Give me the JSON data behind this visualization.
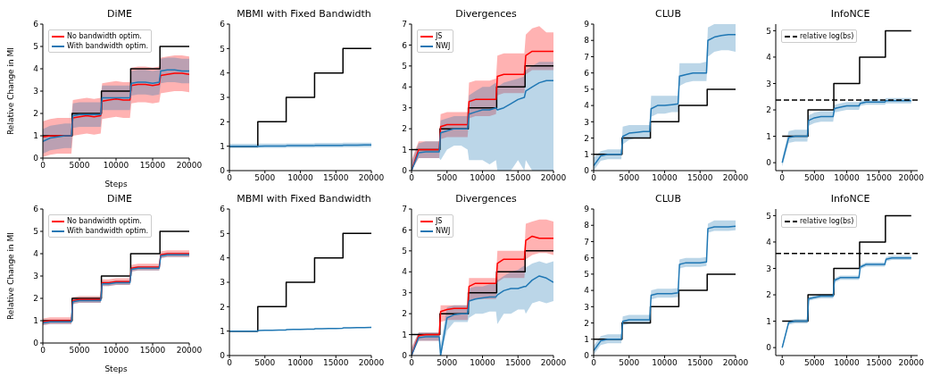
{
  "chart_data": [
    {
      "type": "line",
      "title": "DiME",
      "xlabel": "Steps",
      "ylabel": "Relative Change in MI",
      "xlim": [
        0,
        20000
      ],
      "xticks": [
        0,
        5000,
        10000,
        15000,
        20000
      ],
      "ylim": [
        0,
        6
      ],
      "yticks": [
        0,
        1,
        2,
        3,
        4,
        5,
        6
      ],
      "legend": "top left",
      "x": [
        0,
        1000,
        2000,
        3000,
        3900,
        4100,
        5000,
        6000,
        7000,
        7900,
        8100,
        9000,
        10000,
        11000,
        11900,
        12100,
        13000,
        14000,
        15000,
        15900,
        16100,
        17000,
        18000,
        19000,
        20000
      ],
      "series": [
        {
          "type": "step",
          "color": "#000000",
          "x": [
            0,
            4000,
            8000,
            12000,
            16000,
            20000
          ],
          "values": [
            1,
            2,
            3,
            4,
            5,
            5
          ]
        },
        {
          "name": "No bandwidth optim.",
          "color": "#ff0000",
          "values": [
            0.95,
            1.0,
            1.0,
            1.0,
            1.0,
            1.8,
            1.85,
            1.9,
            1.85,
            1.9,
            2.55,
            2.6,
            2.65,
            2.6,
            2.6,
            3.25,
            3.3,
            3.3,
            3.25,
            3.3,
            3.7,
            3.75,
            3.8,
            3.8,
            3.75
          ],
          "lower": [
            0.05,
            0.15,
            0.2,
            0.2,
            0.2,
            1.0,
            1.05,
            1.1,
            1.05,
            1.1,
            1.75,
            1.8,
            1.85,
            1.8,
            1.8,
            2.45,
            2.5,
            2.5,
            2.45,
            2.5,
            2.9,
            2.95,
            3.0,
            3.0,
            2.95
          ],
          "upper": [
            1.65,
            1.75,
            1.8,
            1.8,
            1.8,
            2.6,
            2.65,
            2.7,
            2.65,
            2.7,
            3.35,
            3.4,
            3.45,
            3.4,
            3.4,
            4.05,
            4.1,
            4.1,
            4.05,
            4.1,
            4.5,
            4.55,
            4.6,
            4.6,
            4.55
          ]
        },
        {
          "name": "With bandwidth optim.",
          "color": "#1f77b4",
          "values": [
            0.75,
            0.9,
            0.95,
            1.0,
            1.0,
            1.9,
            1.95,
            1.95,
            1.95,
            1.95,
            2.7,
            2.7,
            2.7,
            2.7,
            2.7,
            3.35,
            3.4,
            3.4,
            3.35,
            3.4,
            3.9,
            3.95,
            3.95,
            3.9,
            3.9
          ],
          "lower": [
            0.2,
            0.35,
            0.4,
            0.45,
            0.45,
            1.35,
            1.4,
            1.4,
            1.4,
            1.4,
            2.15,
            2.15,
            2.15,
            2.15,
            2.15,
            2.8,
            2.85,
            2.85,
            2.8,
            2.85,
            3.35,
            3.4,
            3.4,
            3.35,
            3.35
          ],
          "upper": [
            1.3,
            1.45,
            1.5,
            1.55,
            1.55,
            2.45,
            2.5,
            2.5,
            2.5,
            2.5,
            3.25,
            3.25,
            3.25,
            3.25,
            3.25,
            3.9,
            3.95,
            3.95,
            3.9,
            3.95,
            4.45,
            4.5,
            4.5,
            4.45,
            4.45
          ]
        }
      ]
    },
    {
      "type": "line",
      "title": "MBMI with Fixed Bandwidth",
      "xlim": [
        0,
        20000
      ],
      "xticks": [
        0,
        5000,
        10000,
        15000,
        20000
      ],
      "ylim": [
        0,
        6
      ],
      "yticks": [
        0,
        1,
        2,
        3,
        4,
        5,
        6
      ],
      "x": [
        0,
        1000,
        2000,
        3000,
        3900,
        4100,
        5000,
        6000,
        7000,
        7900,
        8100,
        9000,
        10000,
        11000,
        11900,
        12100,
        13000,
        14000,
        15000,
        15900,
        16100,
        17000,
        18000,
        19000,
        20000
      ],
      "series": [
        {
          "type": "step",
          "color": "#000000",
          "x": [
            0,
            4000,
            8000,
            12000,
            16000,
            20000
          ],
          "values": [
            1,
            2,
            3,
            4,
            5,
            5
          ]
        },
        {
          "color": "#1f77b4",
          "values": [
            1.0,
            1.0,
            1.0,
            1.0,
            1.0,
            1.0,
            1.01,
            1.01,
            1.01,
            1.01,
            1.02,
            1.02,
            1.02,
            1.02,
            1.02,
            1.03,
            1.03,
            1.03,
            1.03,
            1.03,
            1.04,
            1.04,
            1.04,
            1.05,
            1.05
          ],
          "lower": [
            0.92,
            0.92,
            0.92,
            0.92,
            0.92,
            0.93,
            0.93,
            0.93,
            0.93,
            0.93,
            0.94,
            0.94,
            0.94,
            0.94,
            0.94,
            0.95,
            0.95,
            0.95,
            0.95,
            0.95,
            0.96,
            0.96,
            0.96,
            0.96,
            0.96
          ],
          "upper": [
            1.1,
            1.1,
            1.1,
            1.1,
            1.1,
            1.11,
            1.11,
            1.11,
            1.11,
            1.11,
            1.12,
            1.12,
            1.12,
            1.12,
            1.12,
            1.13,
            1.13,
            1.13,
            1.13,
            1.13,
            1.14,
            1.14,
            1.14,
            1.14,
            1.14
          ]
        }
      ]
    },
    {
      "type": "line",
      "title": "Divergences",
      "xlim": [
        0,
        20000
      ],
      "xticks": [
        0,
        5000,
        10000,
        15000,
        20000
      ],
      "ylim": [
        0,
        7
      ],
      "yticks": [
        0,
        1,
        2,
        3,
        4,
        5,
        6,
        7
      ],
      "legend": "top left",
      "x": [
        0,
        1000,
        2000,
        3000,
        3900,
        4100,
        5000,
        6000,
        7000,
        7900,
        8100,
        9000,
        10000,
        11000,
        11900,
        12100,
        13000,
        14000,
        15000,
        15900,
        16100,
        17000,
        18000,
        19000,
        20000
      ],
      "series": [
        {
          "type": "step",
          "color": "#000000",
          "x": [
            0,
            4000,
            8000,
            12000,
            16000,
            20000
          ],
          "values": [
            1,
            2,
            3,
            4,
            5,
            5
          ]
        },
        {
          "name": "JS",
          "color": "#ff0000",
          "values": [
            0.0,
            1.0,
            1.0,
            1.0,
            1.0,
            2.1,
            2.2,
            2.2,
            2.2,
            2.2,
            3.3,
            3.4,
            3.4,
            3.4,
            3.4,
            4.5,
            4.6,
            4.6,
            4.6,
            4.6,
            5.5,
            5.7,
            5.7,
            5.7,
            5.7
          ],
          "lower": [
            0.0,
            0.6,
            0.6,
            0.6,
            0.6,
            1.5,
            1.6,
            1.6,
            1.6,
            1.6,
            2.5,
            2.6,
            2.6,
            2.6,
            2.7,
            3.6,
            3.7,
            3.7,
            3.7,
            3.7,
            4.6,
            4.8,
            4.8,
            4.8,
            4.8
          ],
          "upper": [
            0.5,
            1.4,
            1.4,
            1.4,
            1.4,
            2.7,
            2.8,
            2.8,
            2.8,
            2.8,
            4.2,
            4.3,
            4.3,
            4.3,
            4.4,
            5.5,
            5.6,
            5.6,
            5.6,
            5.6,
            6.5,
            6.8,
            6.9,
            6.6,
            6.6
          ]
        },
        {
          "name": "NWJ",
          "color": "#1f77b4",
          "values": [
            0.0,
            0.85,
            0.9,
            0.9,
            0.9,
            1.8,
            1.9,
            2.0,
            2.0,
            2.0,
            2.7,
            2.8,
            2.9,
            2.9,
            3.0,
            2.9,
            3.0,
            3.2,
            3.4,
            3.5,
            3.8,
            4.0,
            4.2,
            4.3,
            4.3
          ],
          "lower": [
            0.0,
            0.6,
            0.6,
            0.6,
            0.6,
            0.5,
            1.0,
            1.2,
            1.2,
            1.0,
            0.5,
            0.5,
            0.5,
            0.3,
            0.5,
            0.0,
            0.0,
            0.0,
            0.5,
            0.0,
            0.5,
            0.0,
            0.0,
            0.0,
            0.0
          ],
          "upper": [
            0.4,
            1.3,
            1.4,
            1.4,
            1.4,
            2.4,
            2.5,
            2.6,
            2.6,
            2.6,
            3.6,
            3.8,
            4.0,
            4.0,
            4.2,
            4.0,
            4.2,
            4.3,
            4.4,
            4.5,
            4.8,
            5.0,
            5.2,
            5.2,
            5.2
          ]
        }
      ]
    },
    {
      "type": "line",
      "title": "CLUB",
      "xlim": [
        0,
        20000
      ],
      "xticks": [
        0,
        5000,
        10000,
        15000,
        20000
      ],
      "ylim": [
        0,
        9
      ],
      "yticks": [
        0,
        1,
        2,
        3,
        4,
        5,
        6,
        7,
        8,
        9
      ],
      "x": [
        0,
        1000,
        2000,
        3000,
        3900,
        4100,
        5000,
        6000,
        7000,
        7900,
        8100,
        9000,
        10000,
        11000,
        11900,
        12100,
        13000,
        14000,
        15000,
        15900,
        16100,
        17000,
        18000,
        19000,
        20000
      ],
      "series": [
        {
          "type": "step",
          "color": "#000000",
          "x": [
            0,
            4000,
            8000,
            12000,
            16000,
            20000
          ],
          "values": [
            1,
            2,
            3,
            4,
            5,
            5
          ]
        },
        {
          "color": "#1f77b4",
          "values": [
            0.3,
            0.9,
            1.0,
            1.0,
            1.0,
            2.1,
            2.3,
            2.35,
            2.4,
            2.4,
            3.8,
            4.0,
            4.0,
            4.05,
            4.1,
            5.8,
            5.9,
            6.0,
            6.0,
            6.0,
            8.0,
            8.2,
            8.3,
            8.35,
            8.35
          ],
          "lower": [
            0.0,
            0.6,
            0.7,
            0.7,
            0.7,
            1.6,
            1.9,
            2.0,
            2.0,
            2.0,
            3.3,
            3.5,
            3.5,
            3.6,
            3.6,
            5.2,
            5.4,
            5.5,
            5.5,
            5.5,
            7.0,
            7.3,
            7.4,
            7.4,
            7.3
          ],
          "upper": [
            0.8,
            1.2,
            1.3,
            1.3,
            1.3,
            2.7,
            2.8,
            2.8,
            2.8,
            2.8,
            4.6,
            4.6,
            4.6,
            4.6,
            4.6,
            6.6,
            6.6,
            6.6,
            6.6,
            6.7,
            8.8,
            9.0,
            9.0,
            9.0,
            9.0
          ]
        }
      ]
    },
    {
      "type": "line",
      "title": "InfoNCE",
      "xlim": [
        -1000,
        21000
      ],
      "xticks": [
        0,
        5000,
        10000,
        15000,
        20000
      ],
      "ylim": [
        -0.3,
        5.25
      ],
      "yticks": [
        0,
        1,
        2,
        3,
        4,
        5
      ],
      "legend": "top left",
      "ref_lines": [
        {
          "axis": "y",
          "value": 2.37,
          "label": "relative log(bs)",
          "line_style": "dashed",
          "color": "#000000"
        }
      ],
      "x": [
        0,
        1000,
        2000,
        3000,
        3900,
        4100,
        5000,
        6000,
        7000,
        7900,
        8100,
        9000,
        10000,
        11000,
        11900,
        12100,
        13000,
        14000,
        15000,
        15900,
        16100,
        17000,
        18000,
        19000,
        20000
      ],
      "series": [
        {
          "type": "step",
          "color": "#000000",
          "x": [
            0,
            4000,
            8000,
            12000,
            16000,
            20000
          ],
          "values": [
            1,
            2,
            3,
            4,
            5,
            5
          ]
        },
        {
          "color": "#1f77b4",
          "values": [
            0.0,
            0.95,
            1.0,
            1.0,
            1.0,
            1.6,
            1.7,
            1.75,
            1.75,
            1.75,
            2.05,
            2.1,
            2.15,
            2.15,
            2.15,
            2.25,
            2.3,
            2.3,
            2.3,
            2.3,
            2.35,
            2.35,
            2.35,
            2.35,
            2.35
          ],
          "lower": [
            -0.15,
            0.75,
            0.8,
            0.8,
            0.8,
            1.4,
            1.5,
            1.55,
            1.55,
            1.55,
            1.9,
            1.95,
            2.0,
            2.0,
            2.0,
            2.15,
            2.2,
            2.2,
            2.2,
            2.2,
            2.25,
            2.25,
            2.25,
            2.25,
            2.25
          ],
          "upper": [
            0.15,
            1.2,
            1.25,
            1.25,
            1.25,
            1.8,
            1.9,
            1.95,
            1.95,
            1.95,
            2.2,
            2.25,
            2.3,
            2.3,
            2.3,
            2.35,
            2.4,
            2.4,
            2.4,
            2.4,
            2.45,
            2.45,
            2.45,
            2.45,
            2.45
          ]
        }
      ]
    },
    {
      "type": "line",
      "title": "DiME",
      "xlabel": "Steps",
      "ylabel": "Relative Change in MI",
      "xlim": [
        0,
        20000
      ],
      "xticks": [
        0,
        5000,
        10000,
        15000,
        20000
      ],
      "ylim": [
        0,
        6
      ],
      "yticks": [
        0,
        1,
        2,
        3,
        4,
        5,
        6
      ],
      "legend": "top left",
      "x": [
        0,
        1000,
        2000,
        3000,
        3900,
        4100,
        5000,
        6000,
        7000,
        7900,
        8100,
        9000,
        10000,
        11000,
        11900,
        12100,
        13000,
        14000,
        15000,
        15900,
        16100,
        17000,
        18000,
        19000,
        20000
      ],
      "series": [
        {
          "type": "step",
          "color": "#000000",
          "x": [
            0,
            4000,
            8000,
            12000,
            16000,
            20000
          ],
          "values": [
            1,
            2,
            3,
            4,
            5,
            5
          ]
        },
        {
          "name": "No bandwidth optim.",
          "color": "#ff0000",
          "values": [
            0.95,
            1.0,
            1.0,
            1.0,
            1.0,
            1.9,
            1.95,
            1.95,
            1.95,
            1.95,
            2.7,
            2.7,
            2.75,
            2.75,
            2.75,
            3.35,
            3.4,
            3.4,
            3.4,
            3.4,
            3.95,
            4.0,
            4.0,
            4.0,
            4.0
          ],
          "lower": [
            0.8,
            0.85,
            0.85,
            0.85,
            0.85,
            1.75,
            1.8,
            1.8,
            1.8,
            1.8,
            2.55,
            2.55,
            2.6,
            2.6,
            2.6,
            3.2,
            3.25,
            3.25,
            3.25,
            3.25,
            3.8,
            3.85,
            3.85,
            3.85,
            3.85
          ],
          "upper": [
            1.1,
            1.15,
            1.15,
            1.15,
            1.15,
            2.05,
            2.1,
            2.1,
            2.1,
            2.1,
            2.85,
            2.85,
            2.9,
            2.9,
            2.9,
            3.5,
            3.55,
            3.55,
            3.55,
            3.55,
            4.1,
            4.15,
            4.15,
            4.15,
            4.15
          ]
        },
        {
          "name": "With bandwidth optim.",
          "color": "#1f77b4",
          "values": [
            0.9,
            0.95,
            0.95,
            0.95,
            0.95,
            1.85,
            1.9,
            1.9,
            1.9,
            1.9,
            2.65,
            2.65,
            2.7,
            2.7,
            2.7,
            3.3,
            3.35,
            3.35,
            3.35,
            3.35,
            3.9,
            3.95,
            3.95,
            3.95,
            3.95
          ],
          "lower": [
            0.8,
            0.85,
            0.85,
            0.85,
            0.85,
            1.75,
            1.8,
            1.8,
            1.8,
            1.8,
            2.55,
            2.55,
            2.6,
            2.6,
            2.6,
            3.2,
            3.25,
            3.25,
            3.25,
            3.25,
            3.8,
            3.85,
            3.85,
            3.85,
            3.85
          ],
          "upper": [
            1.0,
            1.05,
            1.05,
            1.05,
            1.05,
            1.95,
            2.0,
            2.0,
            2.0,
            2.0,
            2.75,
            2.75,
            2.8,
            2.8,
            2.8,
            3.4,
            3.45,
            3.45,
            3.45,
            3.45,
            4.0,
            4.05,
            4.05,
            4.05,
            4.05
          ]
        }
      ]
    },
    {
      "type": "line",
      "title": "MBMI with Fixed Bandwidth",
      "xlim": [
        0,
        20000
      ],
      "xticks": [
        0,
        5000,
        10000,
        15000,
        20000
      ],
      "ylim": [
        0,
        6
      ],
      "yticks": [
        0,
        1,
        2,
        3,
        4,
        5,
        6
      ],
      "x": [
        0,
        1000,
        2000,
        3000,
        3900,
        4100,
        5000,
        6000,
        7000,
        7900,
        8100,
        9000,
        10000,
        11000,
        11900,
        12100,
        13000,
        14000,
        15000,
        15900,
        16100,
        17000,
        18000,
        19000,
        20000
      ],
      "series": [
        {
          "type": "step",
          "color": "#000000",
          "x": [
            0,
            4000,
            8000,
            12000,
            16000,
            20000
          ],
          "values": [
            1,
            2,
            3,
            4,
            5,
            5
          ]
        },
        {
          "color": "#1f77b4",
          "values": [
            1.0,
            1.0,
            1.0,
            1.0,
            1.0,
            1.02,
            1.03,
            1.03,
            1.04,
            1.04,
            1.06,
            1.07,
            1.07,
            1.08,
            1.08,
            1.1,
            1.1,
            1.11,
            1.11,
            1.12,
            1.13,
            1.13,
            1.14,
            1.14,
            1.15
          ]
        }
      ]
    },
    {
      "type": "line",
      "title": "Divergences",
      "xlim": [
        0,
        20000
      ],
      "xticks": [
        0,
        5000,
        10000,
        15000,
        20000
      ],
      "ylim": [
        0,
        7
      ],
      "yticks": [
        0,
        1,
        2,
        3,
        4,
        5,
        6,
        7
      ],
      "legend": "top left",
      "x": [
        0,
        1000,
        2000,
        3000,
        3900,
        4100,
        5000,
        6000,
        7000,
        7900,
        8100,
        9000,
        10000,
        11000,
        11900,
        12100,
        13000,
        14000,
        15000,
        15900,
        16100,
        17000,
        18000,
        19000,
        20000
      ],
      "series": [
        {
          "type": "step",
          "color": "#000000",
          "x": [
            0,
            4000,
            8000,
            12000,
            16000,
            20000
          ],
          "values": [
            1,
            2,
            3,
            4,
            5,
            5
          ]
        },
        {
          "name": "JS",
          "color": "#ff0000",
          "values": [
            0.0,
            0.95,
            1.0,
            1.0,
            1.0,
            2.1,
            2.2,
            2.25,
            2.25,
            2.25,
            3.3,
            3.45,
            3.45,
            3.45,
            3.45,
            4.4,
            4.6,
            4.6,
            4.6,
            4.6,
            5.5,
            5.7,
            5.6,
            5.6,
            5.6
          ],
          "lower": [
            0.0,
            0.7,
            0.7,
            0.7,
            0.7,
            1.6,
            1.7,
            1.7,
            1.7,
            1.7,
            2.6,
            2.7,
            2.7,
            2.7,
            2.7,
            3.5,
            3.7,
            3.7,
            3.7,
            3.7,
            4.6,
            4.8,
            4.9,
            4.9,
            4.8
          ],
          "upper": [
            0.4,
            1.1,
            1.1,
            1.1,
            1.1,
            2.4,
            2.4,
            2.4,
            2.4,
            2.4,
            3.7,
            3.7,
            3.7,
            3.7,
            3.7,
            5.0,
            5.0,
            5.0,
            5.0,
            5.0,
            6.3,
            6.4,
            6.5,
            6.5,
            6.4
          ]
        },
        {
          "name": "NWJ",
          "color": "#1f77b4",
          "values": [
            0.0,
            0.85,
            0.9,
            0.9,
            0.9,
            0.0,
            1.8,
            1.95,
            2.0,
            2.0,
            2.6,
            2.7,
            2.75,
            2.8,
            2.8,
            2.9,
            3.1,
            3.2,
            3.2,
            3.3,
            3.3,
            3.6,
            3.8,
            3.7,
            3.5
          ],
          "lower": [
            0.0,
            0.7,
            0.7,
            0.7,
            0.7,
            0.0,
            1.2,
            1.6,
            1.6,
            1.6,
            1.8,
            2.0,
            2.0,
            2.1,
            2.1,
            1.5,
            2.0,
            2.0,
            2.2,
            2.2,
            2.0,
            2.5,
            2.6,
            2.5,
            2.6
          ],
          "upper": [
            0.3,
            1.1,
            1.1,
            1.1,
            1.1,
            0.5,
            2.3,
            2.4,
            2.4,
            2.4,
            3.2,
            3.3,
            3.3,
            3.4,
            3.4,
            3.6,
            3.8,
            4.0,
            4.1,
            4.3,
            4.2,
            4.4,
            4.5,
            4.4,
            4.5
          ]
        }
      ]
    },
    {
      "type": "line",
      "title": "CLUB",
      "xlim": [
        0,
        20000
      ],
      "xticks": [
        0,
        5000,
        10000,
        15000,
        20000
      ],
      "ylim": [
        0,
        9
      ],
      "yticks": [
        0,
        1,
        2,
        3,
        4,
        5,
        6,
        7,
        8,
        9
      ],
      "x": [
        0,
        1000,
        2000,
        3000,
        3900,
        4100,
        5000,
        6000,
        7000,
        7900,
        8100,
        9000,
        10000,
        11000,
        11900,
        12100,
        13000,
        14000,
        15000,
        15900,
        16100,
        17000,
        18000,
        19000,
        20000
      ],
      "series": [
        {
          "type": "step",
          "color": "#000000",
          "x": [
            0,
            4000,
            8000,
            12000,
            16000,
            20000
          ],
          "values": [
            1,
            2,
            3,
            4,
            5,
            5
          ]
        },
        {
          "color": "#1f77b4",
          "values": [
            0.3,
            0.9,
            1.0,
            1.0,
            1.0,
            2.1,
            2.2,
            2.2,
            2.2,
            2.2,
            3.7,
            3.8,
            3.8,
            3.8,
            3.85,
            5.6,
            5.7,
            5.7,
            5.7,
            5.75,
            7.8,
            7.9,
            7.9,
            7.9,
            7.95
          ],
          "lower": [
            0.05,
            0.65,
            0.75,
            0.75,
            0.75,
            1.85,
            1.95,
            1.95,
            1.95,
            1.95,
            3.45,
            3.55,
            3.55,
            3.55,
            3.6,
            5.35,
            5.45,
            5.45,
            5.45,
            5.5,
            7.55,
            7.65,
            7.65,
            7.65,
            7.7
          ],
          "upper": [
            0.6,
            1.2,
            1.3,
            1.3,
            1.3,
            2.4,
            2.5,
            2.5,
            2.5,
            2.5,
            4.0,
            4.1,
            4.1,
            4.1,
            4.15,
            5.9,
            6.0,
            6.0,
            6.0,
            6.05,
            8.1,
            8.3,
            8.3,
            8.3,
            8.3
          ]
        }
      ]
    },
    {
      "type": "line",
      "title": "InfoNCE",
      "xlim": [
        -1000,
        21000
      ],
      "xticks": [
        0,
        5000,
        10000,
        15000,
        20000
      ],
      "ylim": [
        -0.3,
        5.25
      ],
      "yticks": [
        0,
        1,
        2,
        3,
        4,
        5
      ],
      "legend": "top left",
      "ref_lines": [
        {
          "axis": "y",
          "value": 3.57,
          "label": "relative log(bs)",
          "line_style": "dashed",
          "color": "#000000"
        }
      ],
      "x": [
        0,
        1000,
        2000,
        3000,
        3900,
        4100,
        5000,
        6000,
        7000,
        7900,
        8100,
        9000,
        10000,
        11000,
        11900,
        12100,
        13000,
        14000,
        15000,
        15900,
        16100,
        17000,
        18000,
        19000,
        20000
      ],
      "series": [
        {
          "type": "step",
          "color": "#000000",
          "x": [
            0,
            4000,
            8000,
            12000,
            16000,
            20000
          ],
          "values": [
            1,
            2,
            3,
            4,
            5,
            5
          ]
        },
        {
          "color": "#1f77b4",
          "values": [
            0.0,
            0.95,
            1.0,
            1.0,
            1.0,
            1.85,
            1.9,
            1.95,
            1.95,
            1.95,
            2.55,
            2.65,
            2.65,
            2.65,
            2.65,
            3.05,
            3.15,
            3.15,
            3.15,
            3.15,
            3.35,
            3.4,
            3.4,
            3.4,
            3.4
          ],
          "lower": [
            -0.08,
            0.87,
            0.92,
            0.92,
            0.92,
            1.77,
            1.82,
            1.87,
            1.87,
            1.87,
            2.47,
            2.57,
            2.57,
            2.57,
            2.57,
            2.97,
            3.07,
            3.07,
            3.07,
            3.07,
            3.27,
            3.32,
            3.32,
            3.32,
            3.32
          ],
          "upper": [
            0.08,
            1.03,
            1.08,
            1.08,
            1.08,
            1.93,
            1.98,
            2.03,
            2.03,
            2.03,
            2.63,
            2.73,
            2.73,
            2.73,
            2.73,
            3.13,
            3.23,
            3.23,
            3.23,
            3.23,
            3.43,
            3.48,
            3.48,
            3.48,
            3.48
          ]
        }
      ]
    }
  ]
}
